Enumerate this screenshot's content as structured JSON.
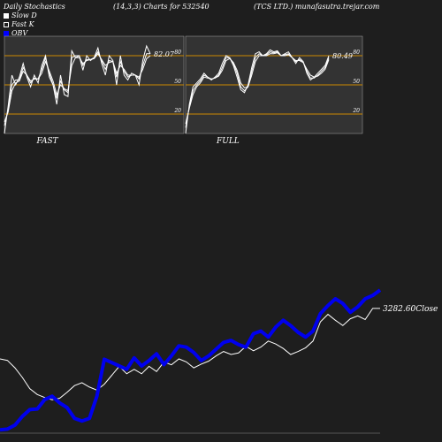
{
  "header": {
    "left": "Daily Stochastics",
    "center": "(14,3,3) Charts for 532540",
    "right": "(TCS LTD.) munafasutra.trejar.com"
  },
  "legend": [
    {
      "label": "Slow  D",
      "color": "#ffffff"
    },
    {
      "label": "Fast K",
      "color": "#ffffff"
    },
    {
      "label": "OBV",
      "color": "#0000ff"
    }
  ],
  "colors": {
    "background": "#1e1e1e",
    "panel": "#333333",
    "level_line": "#cc8800",
    "stoch_line": "#ffffff",
    "obv_line": "#0000ee",
    "close_line": "#ffffff"
  },
  "chart_data": [
    {
      "type": "line",
      "name": "FAST",
      "label": "FAST",
      "ylim": [
        0,
        100
      ],
      "levels": [
        20,
        50,
        80
      ],
      "level_labels": [
        "20",
        "50",
        "80"
      ],
      "last_value_label": "82.07",
      "series": [
        {
          "values": [
            0,
            28,
            60,
            50,
            58,
            72,
            58,
            48,
            60,
            52,
            70,
            80,
            58,
            50,
            30,
            60,
            40,
            38,
            85,
            78,
            80,
            65,
            80,
            75,
            78,
            88,
            72,
            60,
            80,
            75,
            50,
            80,
            60,
            55,
            62,
            60,
            50,
            75,
            90,
            82
          ]
        },
        {
          "values": [
            8,
            25,
            50,
            55,
            55,
            68,
            60,
            52,
            57,
            56,
            66,
            78,
            62,
            50,
            36,
            54,
            45,
            42,
            78,
            80,
            80,
            70,
            76,
            76,
            78,
            84,
            75,
            66,
            75,
            74,
            58,
            74,
            64,
            58,
            60,
            60,
            56,
            70,
            82,
            82
          ]
        },
        {
          "values": [
            12,
            22,
            44,
            52,
            54,
            64,
            60,
            54,
            56,
            56,
            62,
            74,
            64,
            54,
            40,
            50,
            46,
            44,
            70,
            78,
            78,
            72,
            75,
            76,
            77,
            82,
            76,
            70,
            73,
            74,
            62,
            70,
            66,
            60,
            60,
            60,
            58,
            66,
            77,
            80
          ]
        }
      ]
    },
    {
      "type": "line",
      "name": "FULL",
      "label": "FULL",
      "ylim": [
        0,
        100
      ],
      "levels": [
        20,
        50,
        80
      ],
      "level_labels": [
        "20",
        "50",
        "80"
      ],
      "last_value_label": "80.49",
      "series": [
        {
          "values": [
            0,
            30,
            48,
            52,
            56,
            62,
            58,
            55,
            58,
            62,
            72,
            80,
            78,
            70,
            58,
            45,
            42,
            50,
            68,
            82,
            84,
            80,
            82,
            86,
            84,
            85,
            80,
            82,
            84,
            78,
            72,
            78,
            74,
            62,
            55,
            58,
            62,
            66,
            70,
            80
          ]
        },
        {
          "values": [
            6,
            28,
            44,
            50,
            54,
            60,
            58,
            56,
            57,
            60,
            68,
            78,
            78,
            72,
            62,
            48,
            44,
            48,
            64,
            78,
            82,
            80,
            81,
            84,
            83,
            84,
            80,
            81,
            82,
            78,
            74,
            76,
            74,
            64,
            57,
            57,
            60,
            64,
            68,
            78
          ]
        },
        {
          "values": [
            10,
            26,
            40,
            48,
            52,
            58,
            57,
            56,
            57,
            59,
            65,
            75,
            77,
            73,
            65,
            52,
            47,
            48,
            60,
            74,
            80,
            80,
            80,
            82,
            82,
            83,
            80,
            80,
            81,
            78,
            75,
            75,
            73,
            66,
            60,
            58,
            59,
            62,
            66,
            76
          ]
        }
      ]
    },
    {
      "type": "line",
      "name": "OBV and Close",
      "last_value_label": "3282.60Close",
      "series": [
        {
          "name": "OBV",
          "values": [
            5,
            6,
            12,
            25,
            35,
            36,
            50,
            55,
            45,
            38,
            22,
            18,
            22,
            55,
            110,
            105,
            100,
            95,
            112,
            100,
            108,
            118,
            102,
            115,
            130,
            128,
            120,
            108,
            115,
            125,
            135,
            138,
            132,
            128,
            148,
            152,
            143,
            158,
            168,
            160,
            150,
            143,
            152,
            178,
            190,
            200,
            193,
            180,
            188,
            200,
            205,
            213
          ]
        },
        {
          "name": "Close",
          "values": [
            100,
            98,
            88,
            75,
            60,
            52,
            48,
            45,
            47,
            55,
            64,
            68,
            62,
            58,
            66,
            78,
            90,
            80,
            86,
            80,
            90,
            83,
            96,
            92,
            100,
            96,
            88,
            93,
            97,
            104,
            110,
            106,
            108,
            117,
            111,
            116,
            124,
            120,
            114,
            106,
            110,
            115,
            124,
            150,
            160,
            152,
            145,
            154,
            158,
            153,
            168,
            168
          ]
        }
      ]
    }
  ]
}
